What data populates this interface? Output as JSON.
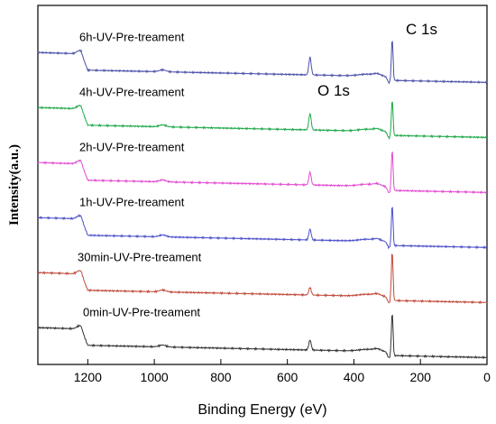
{
  "chart_data": {
    "type": "line",
    "xlabel": "Binding Energy (eV)",
    "ylabel": "Intensity(a.u.)",
    "xlim": [
      1350,
      0
    ],
    "x_ticks": [
      1200,
      1000,
      800,
      600,
      400,
      200,
      0
    ],
    "y_ticks_shown": false,
    "annotations": [
      {
        "text": "C 1s",
        "x": 200
      },
      {
        "text": "O 1s",
        "x": 510
      }
    ],
    "series": [
      {
        "name": "6h-UV-Pre-treament",
        "color": "#4b4fa8",
        "offset": 5,
        "peaks": {
          "O1s": 0.28,
          "C1s": 0.62
        }
      },
      {
        "name": "4h-UV-Pre-treament",
        "color": "#1fa84a",
        "offset": 4,
        "peaks": {
          "O1s": 0.26,
          "C1s": 0.52
        }
      },
      {
        "name": "2h-UV-Pre-treament",
        "color": "#e34bd0",
        "offset": 3,
        "peaks": {
          "O1s": 0.2,
          "C1s": 0.6
        }
      },
      {
        "name": "1h-UV-Pre-treament",
        "color": "#4b4fc8",
        "offset": 2,
        "peaks": {
          "O1s": 0.17,
          "C1s": 0.6
        }
      },
      {
        "name": "30min-UV-Pre-treament",
        "color": "#c04a3a",
        "offset": 1,
        "peaks": {
          "O1s": 0.12,
          "C1s": 0.74
        }
      },
      {
        "name": "0min-UV-Pre-treament",
        "color": "#333333",
        "offset": 0,
        "peaks": {
          "O1s": 0.16,
          "C1s": 0.64
        }
      }
    ]
  }
}
